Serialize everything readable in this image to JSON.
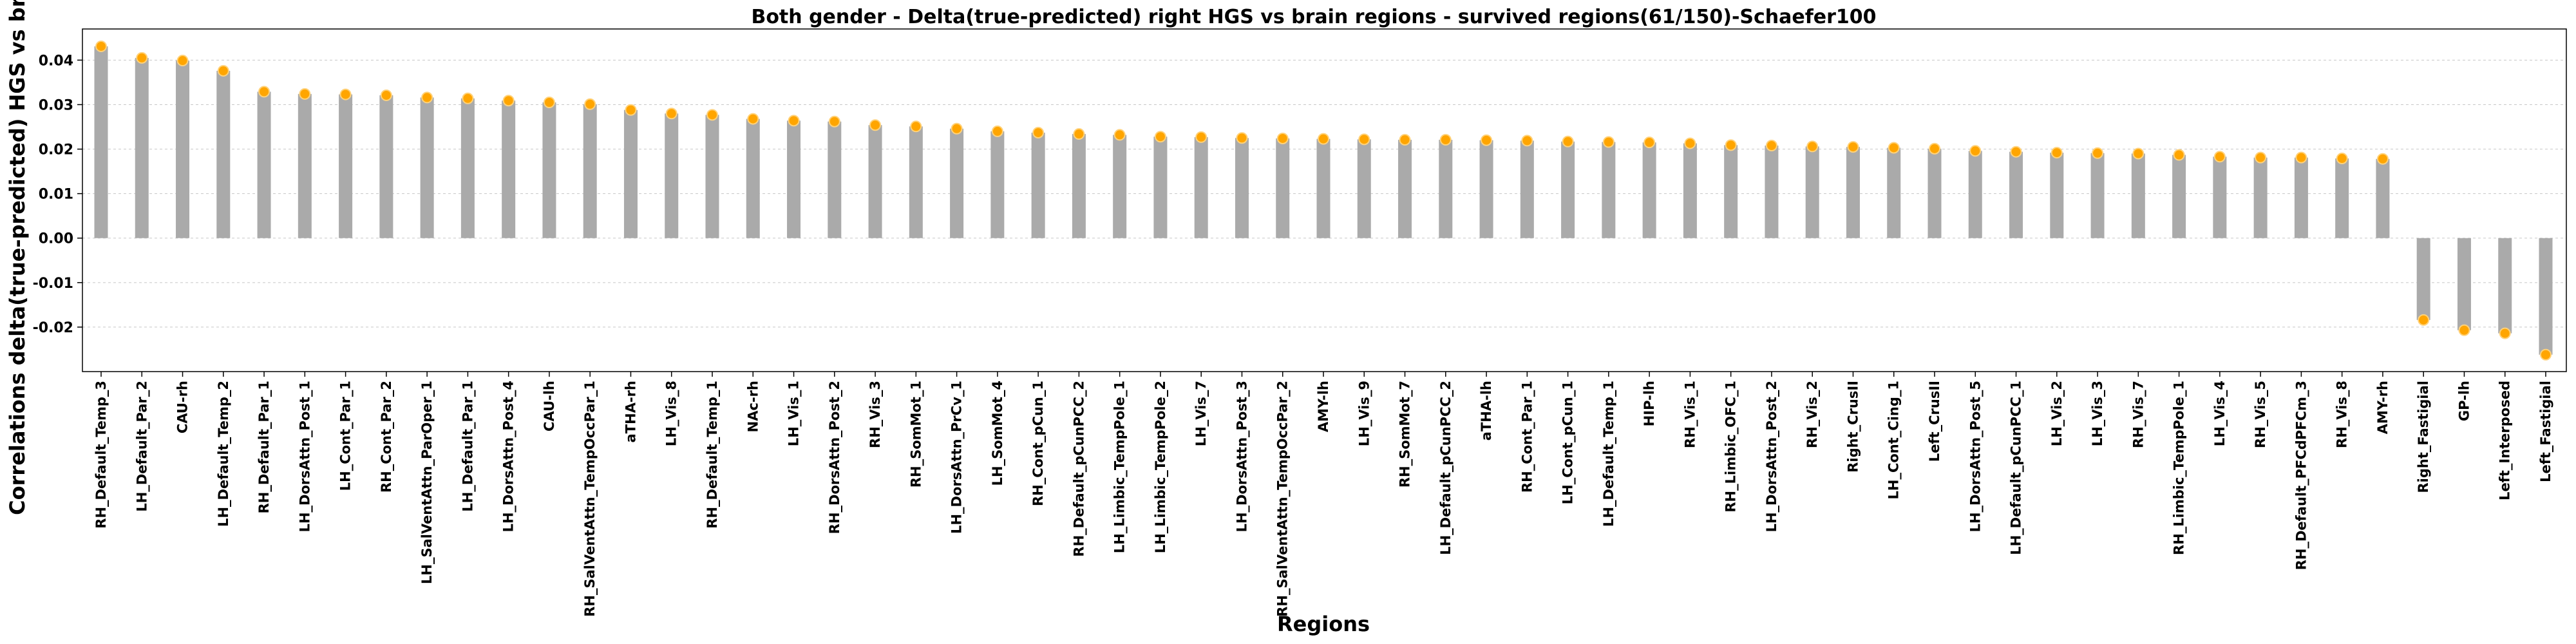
{
  "chart_data": {
    "type": "bar",
    "title": "Both gender - Delta(true-predicted) right HGS vs brain regions - survived regions(61/150)-Schaefer100",
    "xlabel": "Regions",
    "ylabel": "Correlations delta(true-predicted) HGS vs brain",
    "ylim": [
      -0.03,
      0.047
    ],
    "yticks": [
      "-0.02",
      "-0.01",
      "0.00",
      "0.01",
      "0.02",
      "0.03",
      "0.04"
    ],
    "grid": "horizontal dashed",
    "bar_color": "#aaaaaa",
    "marker_color": "#ffa500",
    "categories": [
      "RH_Default_Temp_3",
      "LH_Default_Par_2",
      "CAU-rh",
      "LH_Default_Temp_2",
      "RH_Default_Par_1",
      "LH_DorsAttn_Post_1",
      "LH_Cont_Par_1",
      "RH_Cont_Par_2",
      "LH_SalVentAttn_ParOper_1",
      "LH_Default_Par_1",
      "LH_DorsAttn_Post_4",
      "CAU-lh",
      "RH_SalVentAttn_TempOccPar_1",
      "aTHA-rh",
      "LH_Vis_8",
      "RH_Default_Temp_1",
      "NAc-rh",
      "LH_Vis_1",
      "RH_DorsAttn_Post_2",
      "RH_Vis_3",
      "RH_SomMot_1",
      "LH_DorsAttn_PrCv_1",
      "LH_SomMot_4",
      "RH_Cont_pCun_1",
      "RH_Default_pCunPCC_2",
      "LH_Limbic_TempPole_1",
      "LH_Limbic_TempPole_2",
      "LH_Vis_7",
      "LH_DorsAttn_Post_3",
      "RH_SalVentAttn_TempOccPar_2",
      "AMY-lh",
      "LH_Vis_9",
      "RH_SomMot_7",
      "LH_Default_pCunPCC_2",
      "aTHA-lh",
      "RH_Cont_Par_1",
      "LH_Cont_pCun_1",
      "LH_Default_Temp_1",
      "HIP-lh",
      "RH_Vis_1",
      "RH_Limbic_OFC_1",
      "LH_DorsAttn_Post_2",
      "RH_Vis_2",
      "Right_CrusII",
      "LH_Cont_Cing_1",
      "Left_CrusII",
      "LH_DorsAttn_Post_5",
      "LH_Default_pCunPCC_1",
      "LH_Vis_2",
      "LH_Vis_3",
      "RH_Vis_7",
      "RH_Limbic_TempPole_1",
      "LH_Vis_4",
      "RH_Vis_5",
      "RH_Default_PFCdPFCm_3",
      "RH_Vis_8",
      "AMY-rh",
      "Right_Fastigial",
      "GP-lh",
      "Left_Interposed",
      "Left_Fastigial"
    ],
    "values": [
      0.0431,
      0.0405,
      0.0399,
      0.0376,
      0.0329,
      0.0324,
      0.0323,
      0.0321,
      0.0316,
      0.0314,
      0.0309,
      0.0305,
      0.0301,
      0.0288,
      0.028,
      0.0277,
      0.0268,
      0.0264,
      0.0262,
      0.0254,
      0.0251,
      0.0246,
      0.024,
      0.0237,
      0.0234,
      0.0232,
      0.0228,
      0.0227,
      0.0225,
      0.0224,
      0.0223,
      0.0222,
      0.0221,
      0.0221,
      0.022,
      0.0219,
      0.0217,
      0.0216,
      0.0215,
      0.0213,
      0.0209,
      0.0208,
      0.0206,
      0.0205,
      0.0203,
      0.0201,
      0.0196,
      0.0194,
      0.0192,
      0.0191,
      0.019,
      0.0187,
      0.0183,
      0.0181,
      0.0181,
      0.0179,
      0.0178,
      -0.0184,
      -0.0207,
      -0.0214,
      -0.0262
    ]
  }
}
